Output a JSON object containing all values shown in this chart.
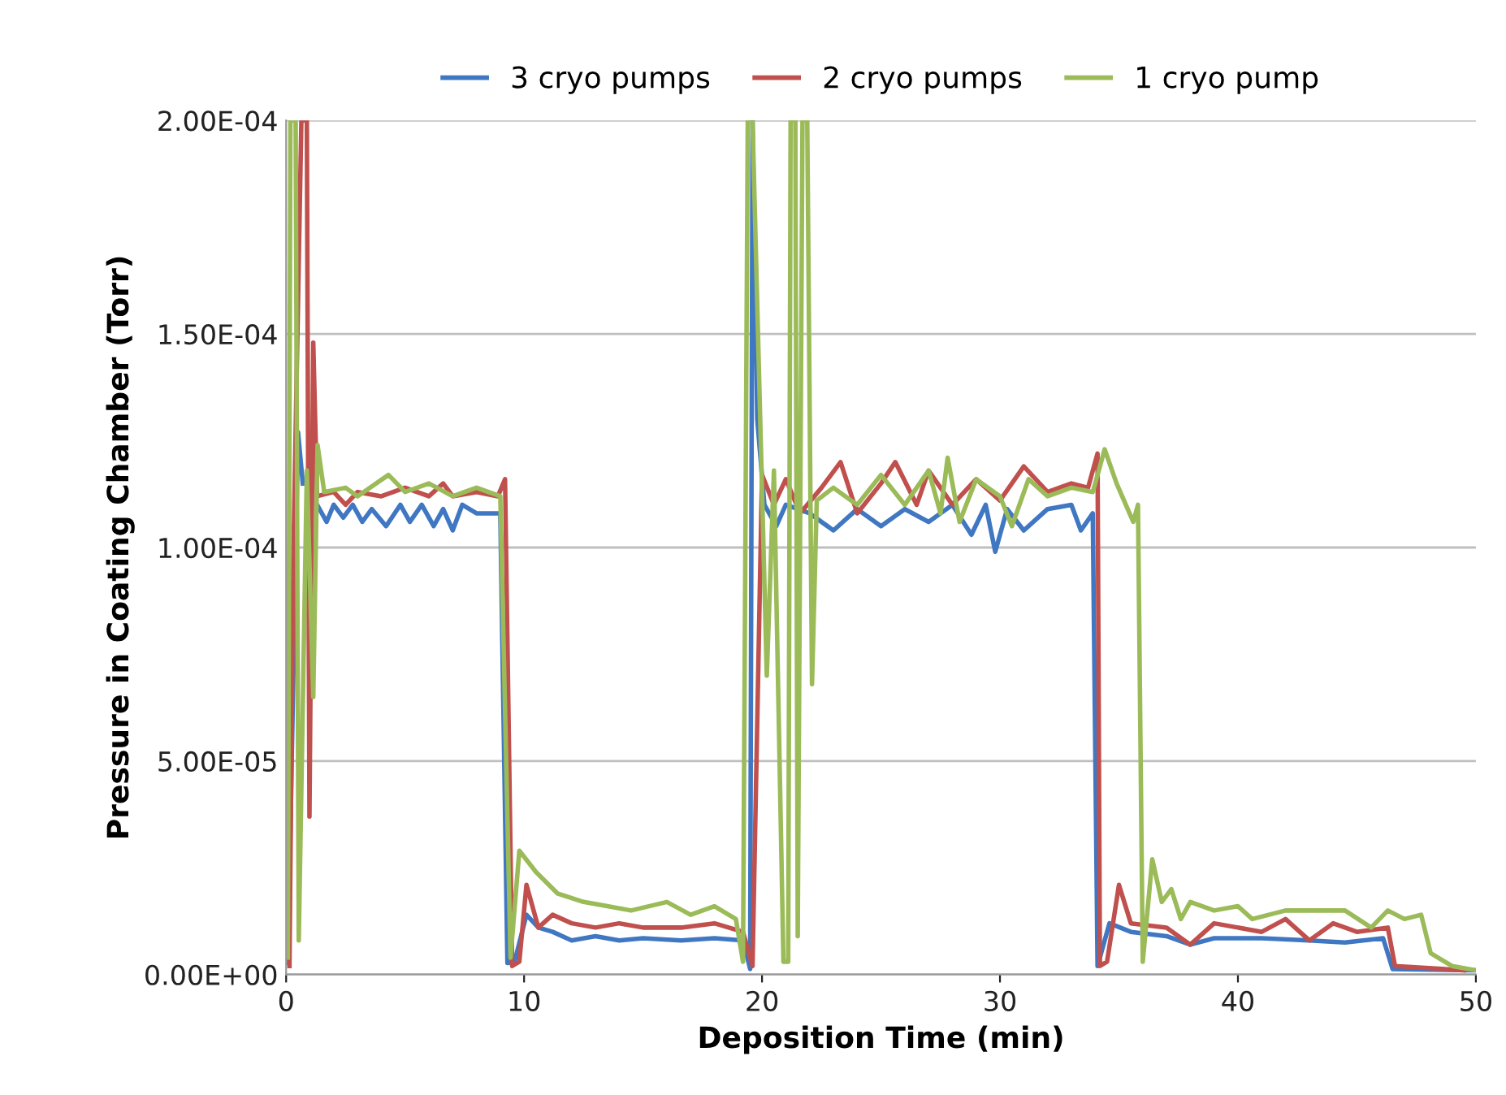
{
  "chart_data": {
    "type": "line",
    "xlabel": "Deposition Time (min)",
    "ylabel": "Pressure in Coating Chamber (Torr)",
    "xlim": [
      0,
      50
    ],
    "xticks": [
      0,
      10,
      20,
      30,
      40,
      50
    ],
    "ylim": [
      0,
      0.0002
    ],
    "yticks": [
      {
        "value": 0,
        "label": "0.00E+00"
      },
      {
        "value": 5e-05,
        "label": "5.00E-05"
      },
      {
        "value": 0.0001,
        "label": "1.00E-04"
      },
      {
        "value": 0.00015,
        "label": "1.50E-04"
      },
      {
        "value": 0.0002,
        "label": "2.00E-04"
      }
    ],
    "grid": "y",
    "legend": "top",
    "marker": "none",
    "line_style": "solid",
    "series": [
      {
        "name": "3 cryo pumps",
        "color": "#4077c2",
        "x": [
          0.07,
          0.5,
          0.7,
          1.0,
          1.3,
          1.7,
          2.0,
          2.4,
          2.8,
          3.2,
          3.6,
          4.2,
          4.8,
          5.2,
          5.7,
          6.2,
          6.6,
          7.0,
          7.4,
          8.0,
          9.0,
          9.3,
          9.6,
          10.1,
          10.6,
          11.2,
          12,
          13,
          14,
          15,
          16.6,
          18,
          19.2,
          19.5,
          19.6,
          19.8,
          20.1,
          20.6,
          21,
          22,
          23,
          24,
          25,
          26,
          27,
          28,
          28.8,
          29.4,
          29.8,
          30.3,
          31,
          32,
          33,
          33.4,
          33.9,
          34.1,
          34.6,
          35.5,
          37,
          38,
          39,
          41,
          43,
          44.5,
          46.1,
          46.5,
          50
        ],
        "values": [
          2.7e-06,
          0.000127,
          0.000115,
          null,
          0.00011,
          0.000106,
          0.00011,
          0.000107,
          0.00011,
          0.000106,
          0.000109,
          0.000105,
          0.00011,
          0.000106,
          0.00011,
          0.000105,
          0.000109,
          0.000104,
          0.00011,
          0.000108,
          0.000108,
          2.7e-06,
          3e-06,
          1.4e-05,
          1.1e-05,
          1e-05,
          8e-06,
          9e-06,
          8e-06,
          8.5e-06,
          8e-06,
          8.5e-06,
          8e-06,
          1.3e-06,
          0.0002,
          0.00013,
          0.00011,
          0.000105,
          0.00011,
          0.000108,
          0.000104,
          0.000109,
          0.000105,
          0.000109,
          0.000106,
          0.00011,
          0.000103,
          0.00011,
          9.9e-05,
          0.000109,
          0.000104,
          0.000109,
          0.00011,
          0.000104,
          0.000108,
          2e-06,
          1.2e-05,
          1e-05,
          9e-06,
          7e-06,
          8.5e-06,
          8.5e-06,
          8e-06,
          7.5e-06,
          8.5e-06,
          1.3e-06,
          1e-06
        ]
      },
      {
        "name": "2 cryo pumps",
        "color": "#c0504d",
        "x": [
          0.14,
          0.3,
          0.64,
          0.87,
          0.98,
          1.14,
          1.3,
          2,
          2.5,
          3,
          4,
          5,
          6,
          6.6,
          7,
          8,
          8.9,
          9.2,
          9.5,
          9.8,
          10.1,
          10.6,
          11.2,
          12,
          13,
          14,
          15,
          16.6,
          18,
          19.2,
          19.6,
          20.0,
          20.5,
          21,
          21.6,
          22.5,
          23.3,
          24,
          25,
          25.6,
          26.5,
          27,
          28,
          29,
          30,
          31,
          32,
          33,
          33.7,
          34.1,
          34.2,
          34.5,
          35.0,
          35.5,
          37,
          38,
          39,
          41,
          42,
          43,
          44,
          45,
          46.3,
          46.6,
          49.5
        ],
        "values": [
          2e-06,
          9.7e-05,
          0.0002,
          0.0002,
          3.7e-05,
          0.000148,
          0.000112,
          0.000113,
          0.00011,
          0.000113,
          0.000112,
          0.000114,
          0.000112,
          0.000115,
          0.000112,
          0.000113,
          0.000112,
          0.000116,
          2e-06,
          3e-06,
          2.1e-05,
          1.1e-05,
          1.4e-05,
          1.2e-05,
          1.1e-05,
          1.2e-05,
          1.1e-05,
          1.1e-05,
          1.2e-05,
          1e-05,
          2e-06,
          0.000117,
          0.00011,
          0.000116,
          0.000108,
          0.000114,
          0.00012,
          0.000108,
          0.000115,
          0.00012,
          0.00011,
          0.000118,
          0.00011,
          0.000116,
          0.000111,
          0.000119,
          0.000113,
          0.000115,
          0.000114,
          0.000122,
          2e-06,
          3e-06,
          2.1e-05,
          1.2e-05,
          1.1e-05,
          7e-06,
          1.2e-05,
          1e-05,
          1.3e-05,
          8e-06,
          1.2e-05,
          1e-05,
          1.1e-05,
          2e-06,
          1e-06
        ]
      },
      {
        "name": "1 cryo pump",
        "color": "#9bbb59",
        "x": [
          0.07,
          0.18,
          0.4,
          0.53,
          0.87,
          1.14,
          1.32,
          1.6,
          2.5,
          3,
          4.3,
          5,
          6,
          7,
          8,
          9.0,
          9.43,
          9.8,
          10.5,
          11.4,
          12.5,
          13.5,
          14.5,
          16,
          17,
          18,
          18.9,
          19.2,
          19.4,
          19.6,
          20.2,
          20.5,
          20.9,
          21.1,
          21.2,
          21.4,
          21.5,
          21.7,
          21.9,
          22.1,
          22.3,
          23,
          24,
          25,
          26,
          27,
          27.5,
          27.8,
          28.3,
          29,
          30,
          30.5,
          31.2,
          32,
          33,
          33.9,
          34.4,
          34.9,
          35.6,
          35.8,
          36.0,
          36.4,
          36.8,
          37.2,
          37.6,
          38,
          39,
          40,
          40.6,
          42,
          43.8,
          44.5,
          45.6,
          46.3,
          47,
          47.7,
          48.1,
          49,
          50
        ],
        "values": [
          4e-06,
          0.0002,
          0.0002,
          8e-06,
          0.000118,
          6.5e-05,
          0.000124,
          0.000113,
          0.000114,
          0.000112,
          0.000117,
          0.000113,
          0.000115,
          0.000112,
          0.000114,
          0.000112,
          4e-06,
          2.9e-05,
          2.4e-05,
          1.9e-05,
          1.7e-05,
          1.6e-05,
          1.5e-05,
          1.7e-05,
          1.4e-05,
          1.6e-05,
          1.3e-05,
          3e-06,
          0.0002,
          0.0002,
          7e-05,
          0.000118,
          3e-06,
          3e-06,
          0.0002,
          0.0002,
          9e-06,
          0.0002,
          0.0002,
          6.8e-05,
          0.000111,
          0.000114,
          0.00011,
          0.000117,
          0.00011,
          0.000118,
          0.000108,
          0.000121,
          0.000106,
          0.000116,
          0.000112,
          0.000105,
          0.000116,
          0.000112,
          0.000114,
          0.000113,
          0.000123,
          0.000115,
          0.000106,
          0.00011,
          3e-06,
          2.7e-05,
          1.7e-05,
          2e-05,
          1.3e-05,
          1.7e-05,
          1.5e-05,
          1.6e-05,
          1.3e-05,
          1.5e-05,
          1.5e-05,
          1.5e-05,
          1.1e-05,
          1.5e-05,
          1.3e-05,
          1.4e-05,
          5e-06,
          2e-06,
          1e-06
        ]
      }
    ]
  }
}
